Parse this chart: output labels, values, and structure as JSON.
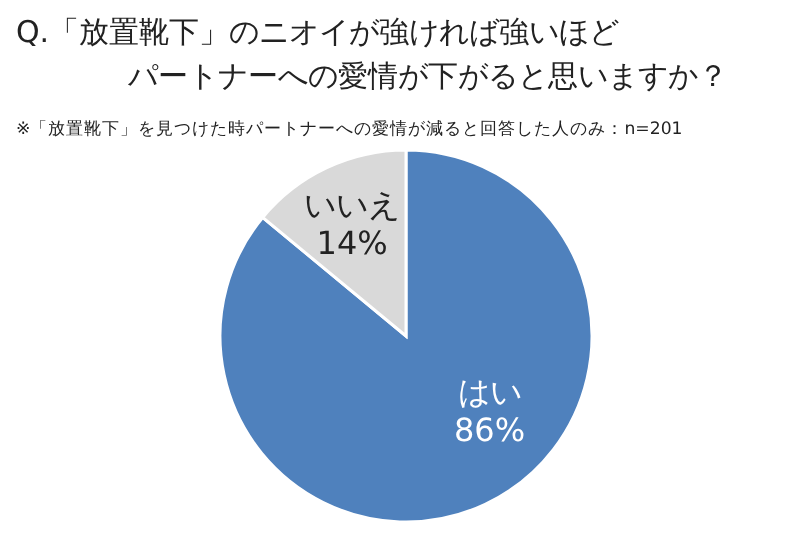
{
  "chart_data": {
    "type": "pie",
    "title": "Q.「放置靴下」のニオイが強ければ強いほど",
    "subtitle": "パートナーへの愛情が下がると思いますか？",
    "annotations": [
      "※「放置靴下」を見つけた時パートナーへの愛情が減ると回答した人のみ：n=201"
    ],
    "categories": [
      "はい",
      "いいえ"
    ],
    "values": [
      86,
      14
    ],
    "value_labels": [
      "86%",
      "14%"
    ],
    "colors": [
      "#4f81bd",
      "#d9d9d9"
    ]
  }
}
